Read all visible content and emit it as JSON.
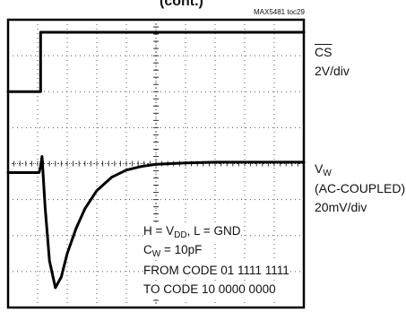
{
  "header": {
    "title_fragment": "(cont.)",
    "figure_id": "MAX5481 toc29"
  },
  "channels": {
    "cs": {
      "name": "CS",
      "scale": "2V/div"
    },
    "vw": {
      "name_main": "V",
      "name_sub": "W",
      "coupling": "(AC-COUPLED)",
      "scale": "20mV/div"
    }
  },
  "annotations": {
    "line1": {
      "a": "H = V",
      "a_sub": "DD",
      "b": ", L = GND"
    },
    "line2": {
      "a": "C",
      "a_sub": "W",
      "b": " = 10pF"
    },
    "line3": "FROM CODE 01 1111 1111",
    "line4": "TO CODE 10 0000 0000"
  },
  "chart_data": {
    "type": "line",
    "grid": {
      "divisions_x": 10,
      "divisions_y": 8,
      "style": "dotted"
    },
    "x_unit": "div",
    "series": [
      {
        "name": "CS",
        "x": [
          0,
          1.1,
          1.1,
          10
        ],
        "y": [
          6.0,
          6.0,
          7.65,
          7.65
        ]
      },
      {
        "name": "VW",
        "x": [
          0,
          1.05,
          1.1,
          1.15,
          1.25,
          1.4,
          1.6,
          1.8,
          2.0,
          2.3,
          2.6,
          3.0,
          3.5,
          4.0,
          4.5,
          5.0,
          6.0,
          7.0,
          8.0,
          9.0,
          10.0
        ],
        "y": [
          3.75,
          3.75,
          3.92,
          4.2,
          2.8,
          1.3,
          0.55,
          0.85,
          1.5,
          2.2,
          2.75,
          3.25,
          3.62,
          3.82,
          3.92,
          3.98,
          4.02,
          4.04,
          4.04,
          4.04,
          4.04
        ]
      }
    ]
  }
}
